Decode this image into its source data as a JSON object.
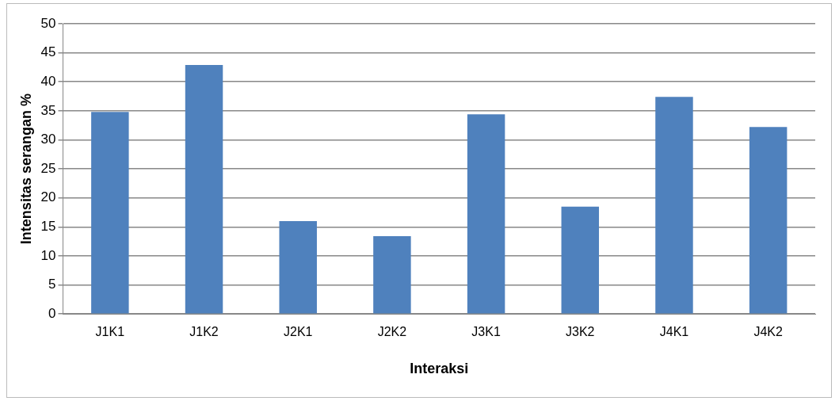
{
  "chart_data": {
    "type": "bar",
    "xlabel": "Interaksi",
    "ylabel": "Intensitas serangan %",
    "categories": [
      "J1K1",
      "J1K2",
      "J2K1",
      "J2K2",
      "J3K1",
      "J3K2",
      "J4K1",
      "J4K2"
    ],
    "values": [
      34.8,
      42.9,
      16.0,
      13.4,
      34.4,
      18.5,
      37.4,
      32.2
    ],
    "color": "#4f81bd",
    "ylim": [
      0,
      50
    ],
    "yticks": [
      0,
      5,
      10,
      15,
      20,
      25,
      30,
      35,
      40,
      45,
      50
    ],
    "grid": "y",
    "legend": false
  }
}
